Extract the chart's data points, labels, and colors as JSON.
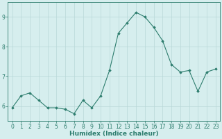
{
  "x": [
    0,
    1,
    2,
    3,
    4,
    5,
    6,
    7,
    8,
    9,
    10,
    11,
    12,
    13,
    14,
    15,
    16,
    17,
    18,
    19,
    20,
    21,
    22,
    23
  ],
  "y": [
    5.95,
    6.35,
    6.45,
    6.2,
    5.95,
    5.95,
    5.9,
    5.75,
    6.2,
    5.95,
    6.35,
    7.2,
    8.45,
    8.8,
    9.15,
    9.0,
    8.65,
    8.2,
    7.4,
    7.15,
    7.2,
    6.5,
    7.15,
    7.25
  ],
  "line_color": "#2d7d6e",
  "marker_color": "#2d7d6e",
  "bg_color": "#d6eeee",
  "grid_color": "#b8d8d8",
  "axis_color": "#2d7d6e",
  "xlabel": "Humidex (Indice chaleur)",
  "xlim": [
    -0.5,
    23.5
  ],
  "ylim": [
    5.5,
    9.5
  ],
  "yticks": [
    6,
    7,
    8,
    9
  ],
  "xticks": [
    0,
    1,
    2,
    3,
    4,
    5,
    6,
    7,
    8,
    9,
    10,
    11,
    12,
    13,
    14,
    15,
    16,
    17,
    18,
    19,
    20,
    21,
    22,
    23
  ],
  "xlabel_fontsize": 6.5,
  "tick_fontsize": 5.5
}
